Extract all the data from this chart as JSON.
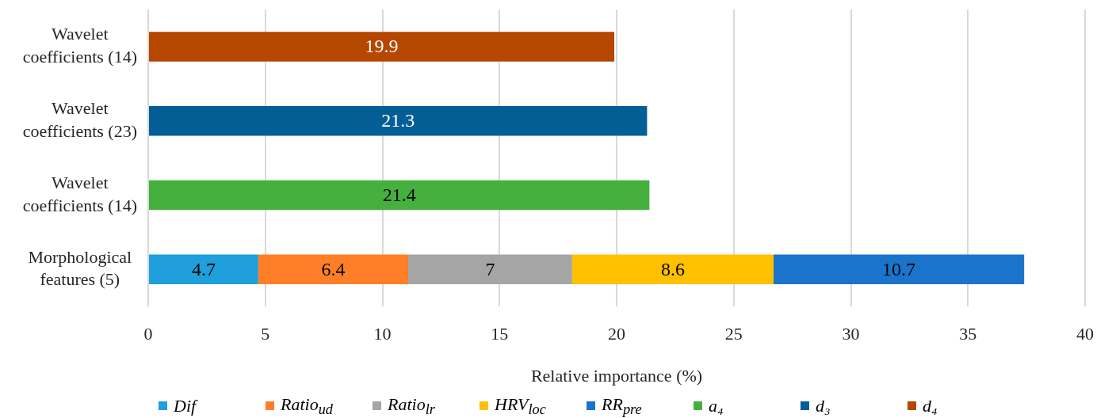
{
  "chart_data": {
    "type": "bar",
    "orientation": "horizontal",
    "stacked": true,
    "categories": [
      "Wavelet coefficients (14)",
      "Wavelet coefficients (23)",
      "Wavelet coefficients (14)",
      "Morphological features (5)"
    ],
    "series": [
      {
        "name": "Dif",
        "color": "#1f9fdb",
        "values": [
          null,
          null,
          null,
          4.7
        ]
      },
      {
        "name": "Ratio$_{ud}$",
        "color": "#fe7f27",
        "values": [
          null,
          null,
          null,
          6.4
        ]
      },
      {
        "name": "Ratio$_{lr}$",
        "color": "#a5a5a5",
        "values": [
          null,
          null,
          null,
          7
        ]
      },
      {
        "name": "HRV$_{loc}$",
        "color": "#ffc000",
        "values": [
          null,
          null,
          null,
          8.6
        ]
      },
      {
        "name": "RR$_{pre}$",
        "color": "#1a74cc",
        "values": [
          null,
          null,
          null,
          10.7
        ]
      },
      {
        "name": "a₄",
        "color": "#46b03e",
        "values": [
          null,
          null,
          21.4,
          null
        ]
      },
      {
        "name": "d₃",
        "color": "#045e96",
        "values": [
          null,
          21.3,
          null,
          null
        ]
      },
      {
        "name": "d₄",
        "color": "#b54700",
        "values": [
          19.9,
          null,
          null,
          null
        ]
      }
    ],
    "xlim": [
      0,
      40
    ],
    "xticks": [
      0,
      5,
      10,
      15,
      20,
      25,
      30,
      35,
      40
    ],
    "xlabel": "Relative importance (%)",
    "grid": "x",
    "legend": "bottom",
    "data_labels": true
  }
}
